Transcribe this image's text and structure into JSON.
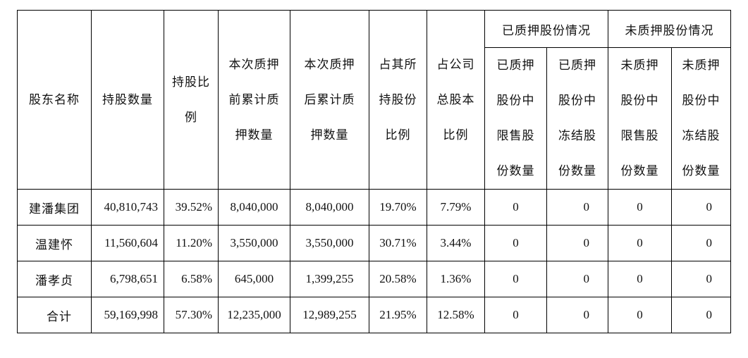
{
  "header": {
    "name": "股东名称",
    "shares": "持股数量",
    "share_ratio": [
      "持股比",
      "例"
    ],
    "before_pledge": [
      "本次质押",
      "前累计质",
      "押数量"
    ],
    "after_pledge": [
      "本次质押",
      "后累计质",
      "押数量"
    ],
    "own_ratio": [
      "占其所",
      "持股份",
      "比例"
    ],
    "company_ratio": [
      "占公司",
      "总股本",
      "比例"
    ],
    "pledged_group": "已质押股份情况",
    "unpledged_group": "未质押股份情况",
    "pledged_restricted": [
      "已质押",
      "股份中",
      "限售股",
      "份数量"
    ],
    "pledged_frozen": [
      "已质押",
      "股份中",
      "冻结股",
      "份数量"
    ],
    "unpledged_restricted": [
      "未质押",
      "股份中",
      "限售股",
      "份数量"
    ],
    "unpledged_frozen": [
      "未质押",
      "股份中",
      "冻结股",
      "份数量"
    ]
  },
  "rows": [
    {
      "name": "建潘集团",
      "shares": "40,810,743",
      "share_ratio": "39.52%",
      "before": "8,040,000",
      "after": "8,040,000",
      "own_ratio": "19.70%",
      "company_ratio": "7.79%",
      "p_restricted": "0",
      "p_frozen": "0",
      "u_restricted": "0",
      "u_frozen": "0"
    },
    {
      "name": "温建怀",
      "shares": "11,560,604",
      "share_ratio": "11.20%",
      "before": "3,550,000",
      "after": "3,550,000",
      "own_ratio": "30.71%",
      "company_ratio": "3.44%",
      "p_restricted": "0",
      "p_frozen": "0",
      "u_restricted": "0",
      "u_frozen": "0"
    },
    {
      "name": "潘孝贞",
      "shares": "6,798,651",
      "share_ratio": "6.58%",
      "before": "645,000",
      "after": "1,399,255",
      "own_ratio": "20.58%",
      "company_ratio": "1.36%",
      "p_restricted": "0",
      "p_frozen": "0",
      "u_restricted": "0",
      "u_frozen": "0"
    },
    {
      "name": "合计",
      "shares": "59,169,998",
      "share_ratio": "57.30%",
      "before": "12,235,000",
      "after": "12,989,255",
      "own_ratio": "21.95%",
      "company_ratio": "12.58%",
      "p_restricted": "0",
      "p_frozen": "0",
      "u_restricted": "0",
      "u_frozen": "0"
    }
  ]
}
